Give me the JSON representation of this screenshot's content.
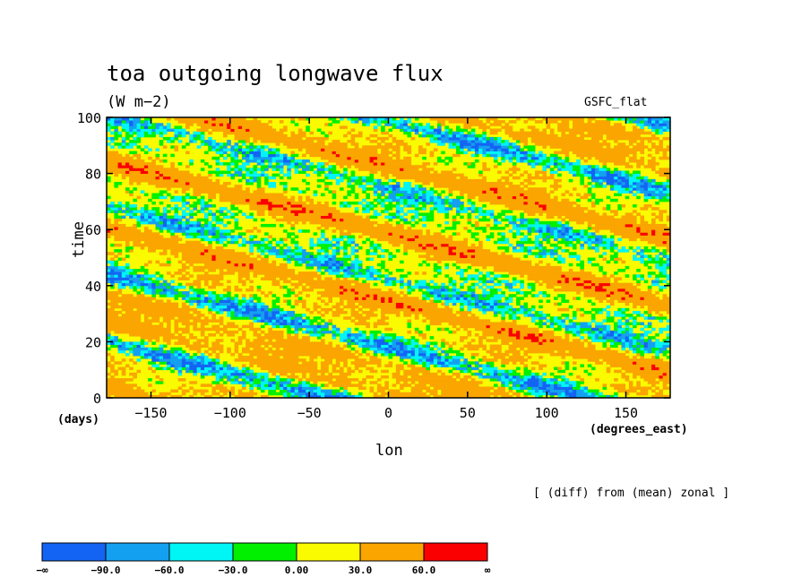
{
  "chart_data": {
    "type": "heatmap",
    "title": "toa outgoing longwave flux",
    "units": "(W m−2)",
    "experiment": "GSFC_flat",
    "xlabel": "lon",
    "ylabel": "time",
    "xunits": "(degrees_east)",
    "yunits": "(days)",
    "xlim": [
      -178,
      178
    ],
    "ylim": [
      0,
      100
    ],
    "xticks": [
      -150,
      -100,
      -50,
      0,
      50,
      100,
      150
    ],
    "yticks": [
      0,
      20,
      40,
      60,
      80,
      100
    ],
    "xtick_labels": [
      "−150",
      "−100",
      "−50",
      "0",
      "50",
      "100",
      "150"
    ],
    "ytick_labels": [
      "0",
      "20",
      "40",
      "60",
      "80",
      "100"
    ],
    "note": "[ (diff) from (mean) zonal ]",
    "colorbar": {
      "levels": [
        "−∞",
        "−90.0",
        "−60.0",
        "−30.0",
        "0.00",
        "30.0",
        "60.0",
        "∞"
      ],
      "colors": [
        "#1464f4",
        "#14a0f0",
        "#00f5f5",
        "#00f000",
        "#fafa00",
        "#faa500",
        "#fa0000"
      ]
    },
    "propagation": "eastward-moving bands tilting from upper-left to lower-right"
  }
}
